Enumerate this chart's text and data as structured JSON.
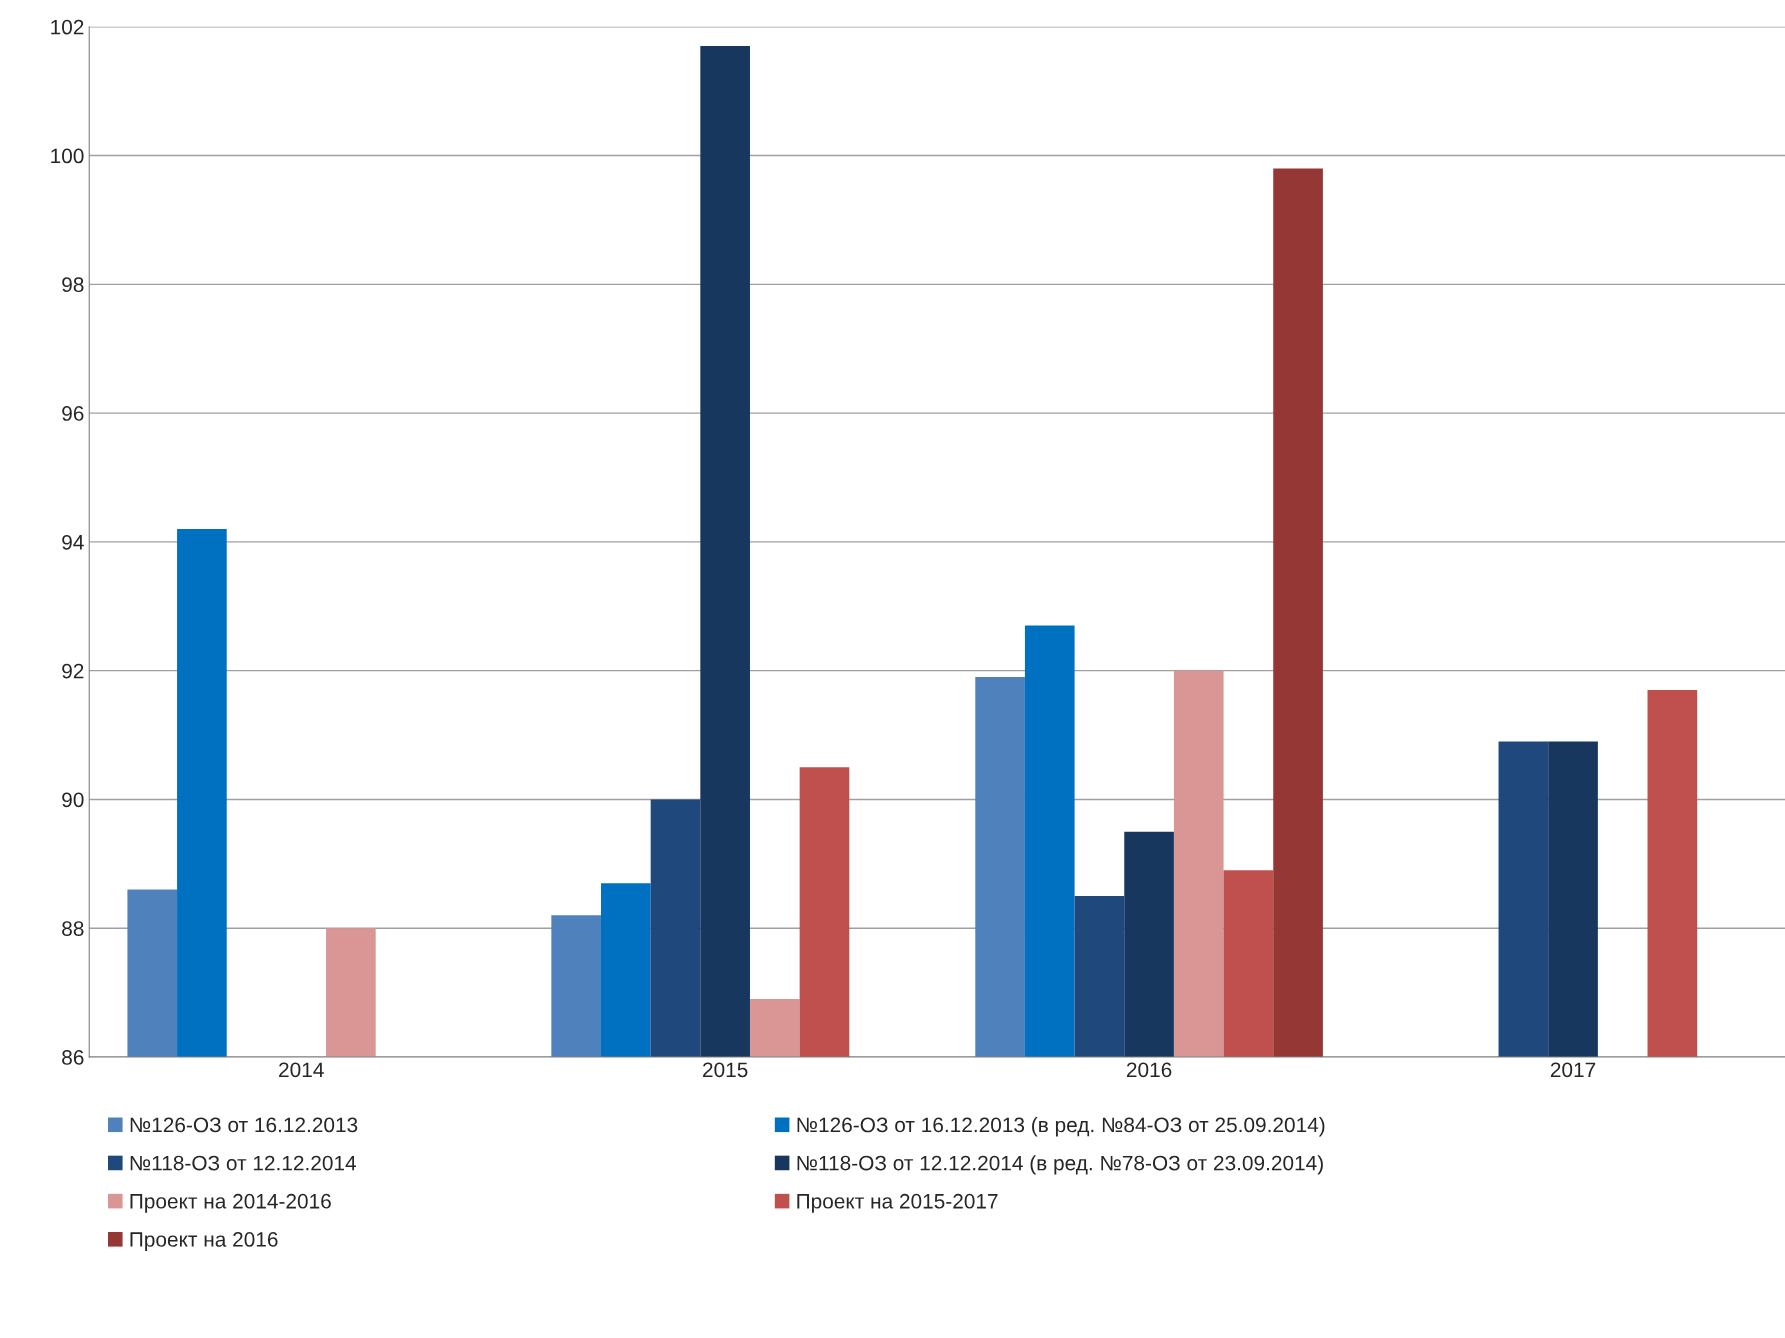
{
  "chart_data": {
    "type": "bar",
    "categories": [
      "2014",
      "2015",
      "2016",
      "2017"
    ],
    "series": [
      {
        "name": "№126-ОЗ от 16.12.2013",
        "color": "#4f81bd",
        "values": [
          88.6,
          88.2,
          91.9,
          null
        ]
      },
      {
        "name": "№126-ОЗ от 16.12.2013 (в ред. №84-ОЗ от 25.09.2014)",
        "color": "#0070c0",
        "values": [
          94.2,
          88.7,
          92.7,
          null
        ]
      },
      {
        "name": "№118-ОЗ от 12.12.2014",
        "color": "#1f497d",
        "values": [
          null,
          90.0,
          88.5,
          90.9
        ]
      },
      {
        "name": "№118-ОЗ от 12.12.2014 (в ред. №78-ОЗ от 23.09.2014)",
        "color": "#17375e",
        "values": [
          null,
          101.7,
          89.5,
          90.9
        ]
      },
      {
        "name": "Проект на 2014-2016",
        "color": "#da9694",
        "values": [
          88.0,
          86.9,
          92.0,
          null
        ]
      },
      {
        "name": "Проект на 2015-2017",
        "color": "#c0504d",
        "values": [
          null,
          90.5,
          88.9,
          91.7
        ]
      },
      {
        "name": "Проект на 2016",
        "color": "#953735",
        "values": [
          null,
          null,
          99.8,
          null
        ]
      }
    ],
    "ylim": [
      86,
      102
    ],
    "yticks": [
      86,
      88,
      90,
      92,
      94,
      96,
      98,
      100,
      102
    ],
    "grid": "y",
    "legend": "bottom"
  }
}
